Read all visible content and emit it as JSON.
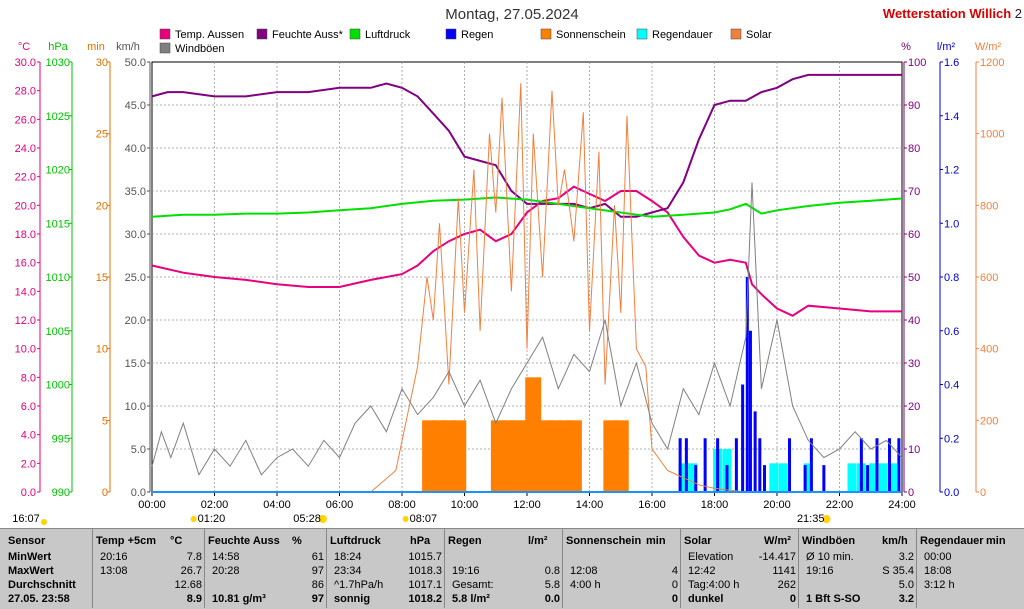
{
  "title": "Montag, 27.05.2024",
  "station": "Wetterstation Willich",
  "station_edge": "2",
  "legend": [
    {
      "label": "Temp. Aussen",
      "color": "#e6007e"
    },
    {
      "label": "Feuchte Auss*",
      "color": "#800080"
    },
    {
      "label": "Luftdruck",
      "color": "#00e000"
    },
    {
      "label": "Regen",
      "color": "#0000ff"
    },
    {
      "label": "Sonnenschein",
      "color": "#ff8000"
    },
    {
      "label": "Regendauer",
      "color": "#00ffff"
    },
    {
      "label": "Solar",
      "color": "#f08040"
    },
    {
      "label": "Windböen",
      "color": "#808080"
    }
  ],
  "axis_units": {
    "temp": "°C",
    "pressure": "hPa",
    "sun": "min",
    "wind": "km/h",
    "humidity": "%",
    "rain": "l/m²",
    "solar": "W/m²"
  },
  "axes": {
    "temp": {
      "min": 0,
      "max": 30,
      "step": 2,
      "ticks": [
        "0.0",
        "2.0",
        "4.0",
        "6.0",
        "8.0",
        "10.0",
        "12.0",
        "14.0",
        "16.0",
        "18.0",
        "20.0",
        "22.0",
        "24.0",
        "26.0",
        "28.0",
        "30.0"
      ]
    },
    "pressure": {
      "ticks": [
        "990",
        "995",
        "1000",
        "1005",
        "1010",
        "1015",
        "1020",
        "1025",
        "1030"
      ]
    },
    "sun": {
      "ticks": [
        "0",
        "5",
        "10",
        "15",
        "20",
        "25",
        "30"
      ]
    },
    "wind": {
      "ticks": [
        "0.0",
        "5.0",
        "10.0",
        "15.0",
        "20.0",
        "25.0",
        "30.0",
        "35.0",
        "40.0",
        "45.0",
        "50.0"
      ]
    },
    "humidity": {
      "ticks": [
        "0",
        "10",
        "20",
        "30",
        "40",
        "50",
        "60",
        "70",
        "80",
        "90",
        "100"
      ]
    },
    "rain": {
      "ticks": [
        "0.0",
        "0.2",
        "0.4",
        "0.6",
        "0.8",
        "1.0",
        "1.2",
        "1.4",
        "1.6"
      ]
    },
    "solar": {
      "ticks": [
        "0",
        "200",
        "400",
        "600",
        "800",
        "1000",
        "1200"
      ]
    },
    "time": {
      "ticks": [
        "00:00",
        "02:00",
        "04:00",
        "06:00",
        "08:00",
        "10:00",
        "12:00",
        "14:00",
        "16:00",
        "18:00",
        "20:00",
        "22:00",
        "24:00"
      ]
    }
  },
  "sun_markers": {
    "sunrise": "05:28",
    "sunset": "21:35",
    "moon": "01:20",
    "twilight": "08:07"
  },
  "chart_data": {
    "type": "line",
    "title": "Montag, 27.05.2024",
    "x_unit": "hours",
    "xlim": [
      0,
      24
    ],
    "grid": true,
    "series": [
      {
        "name": "Temp. Aussen",
        "axis": "temp",
        "color": "#e6007e",
        "x": [
          0,
          1,
          2,
          3,
          4,
          5,
          6,
          7,
          8,
          8.5,
          9,
          9.5,
          10,
          10.5,
          11,
          11.5,
          12,
          12.5,
          13,
          13.5,
          14,
          14.5,
          15,
          15.5,
          16,
          16.5,
          17,
          17.5,
          18,
          18.5,
          19,
          19.2,
          19.5,
          20,
          20.5,
          21,
          22,
          23,
          24
        ],
        "y": [
          15.8,
          15.3,
          15.0,
          14.8,
          14.5,
          14.3,
          14.3,
          14.8,
          15.2,
          15.8,
          16.8,
          17.5,
          18.0,
          18.3,
          17.5,
          18.0,
          19.5,
          20.3,
          20.5,
          21.3,
          20.8,
          20.3,
          21.0,
          21.0,
          20.3,
          19.5,
          17.8,
          16.5,
          16.0,
          16.2,
          16.0,
          14.5,
          13.8,
          12.8,
          12.3,
          13.0,
          12.8,
          12.6,
          12.6
        ]
      },
      {
        "name": "Feuchte Auss*",
        "axis": "humidity",
        "color": "#800080",
        "x": [
          0,
          0.5,
          1,
          2,
          3,
          4,
          5,
          6,
          7,
          7.5,
          8,
          8.5,
          9,
          9.5,
          10,
          10.5,
          11,
          11.5,
          12,
          12.5,
          13,
          13.5,
          14,
          14.5,
          15,
          15.5,
          16,
          16.5,
          17,
          17.5,
          18,
          18.5,
          19,
          19.5,
          20,
          20.5,
          21,
          22,
          23,
          24
        ],
        "y": [
          92,
          93,
          93,
          92,
          92,
          93,
          93,
          94,
          94,
          95,
          94,
          92,
          88,
          84,
          78,
          77,
          76,
          70,
          67,
          67,
          67,
          67,
          66,
          67,
          64,
          64,
          65,
          66,
          72,
          82,
          90,
          91,
          91,
          93,
          94,
          96,
          97,
          97,
          97,
          97
        ]
      },
      {
        "name": "Luftdruck",
        "axis": "pressure",
        "color": "#00e000",
        "x": [
          0,
          1,
          2,
          3,
          4,
          5,
          6,
          7,
          8,
          9,
          10,
          11,
          12,
          13,
          14,
          15,
          16,
          17,
          18,
          18.5,
          19,
          19.5,
          20,
          21,
          22,
          23,
          24
        ],
        "y": [
          1015.6,
          1015.8,
          1015.8,
          1015.9,
          1015.9,
          1016.0,
          1016.2,
          1016.4,
          1016.8,
          1017.1,
          1017.2,
          1017.4,
          1017.2,
          1016.8,
          1016.4,
          1016.0,
          1015.6,
          1015.8,
          1016.0,
          1016.3,
          1016.8,
          1015.9,
          1016.2,
          1016.6,
          1016.9,
          1017.1,
          1017.3
        ]
      },
      {
        "name": "Solar",
        "axis": "solar",
        "color": "#f08040",
        "x": [
          0,
          7,
          7.8,
          8.5,
          8.8,
          9.0,
          9.2,
          9.5,
          9.8,
          10.0,
          10.3,
          10.5,
          10.8,
          11.0,
          11.2,
          11.5,
          11.8,
          12.0,
          12.2,
          12.5,
          12.8,
          13.0,
          13.2,
          13.5,
          13.8,
          14.0,
          14.3,
          14.5,
          14.8,
          15.0,
          15.2,
          15.5,
          15.8,
          16.0,
          16.5,
          17.0,
          17.5,
          18.0,
          18.5,
          19.0,
          19.2,
          19.5,
          20,
          24
        ],
        "y": [
          0,
          0,
          60,
          350,
          600,
          480,
          750,
          300,
          820,
          500,
          900,
          450,
          1000,
          780,
          1100,
          560,
          1141,
          400,
          1000,
          600,
          1120,
          800,
          900,
          700,
          1060,
          450,
          950,
          300,
          800,
          500,
          1050,
          400,
          350,
          120,
          60,
          40,
          20,
          10,
          5,
          0,
          0,
          0,
          0,
          0
        ]
      },
      {
        "name": "Windböen",
        "axis": "wind",
        "color": "#808080",
        "x": [
          0,
          0.3,
          0.6,
          1,
          1.5,
          2,
          2.5,
          3,
          3.5,
          4,
          4.5,
          5,
          5.5,
          6,
          6.5,
          7,
          7.5,
          8,
          8.5,
          9,
          9.5,
          10,
          10.5,
          11,
          11.5,
          12,
          12.5,
          13,
          13.5,
          14,
          14.5,
          15,
          15.5,
          16,
          16.5,
          17,
          17.5,
          18,
          18.5,
          19,
          19.2,
          19.5,
          20,
          20.5,
          21,
          21.5,
          22,
          22.5,
          23,
          23.5,
          24
        ],
        "y": [
          3,
          7,
          4,
          8,
          2,
          5,
          3,
          6,
          2,
          4,
          5,
          3,
          6,
          4,
          8,
          10,
          7,
          12,
          9,
          11,
          14,
          10,
          13,
          8,
          12,
          15,
          18,
          12,
          16,
          14,
          20,
          10,
          15,
          8,
          5,
          12,
          9,
          15,
          10,
          18,
          36,
          12,
          20,
          10,
          6,
          4,
          5,
          7,
          5,
          6,
          4
        ]
      }
    ],
    "bars": [
      {
        "name": "Sonnenschein",
        "axis": "sun",
        "color": "#ff8000",
        "x": [
          8.9,
          9.2,
          9.5,
          9.8,
          11.1,
          11.4,
          11.7,
          12.0,
          12.2,
          12.6,
          12.9,
          13.2,
          13.5,
          14.7,
          15.0
        ],
        "y": [
          5,
          5,
          5,
          5,
          5,
          5,
          5,
          5,
          8,
          5,
          5,
          5,
          5,
          5,
          5
        ]
      },
      {
        "name": "Regendauer",
        "axis": "sun",
        "color": "#00ffff",
        "x": [
          17.0,
          17.3,
          18.1,
          18.4,
          19.9,
          20.2,
          21.0,
          22.4,
          22.7,
          23.1,
          23.4,
          23.7
        ],
        "y": [
          2,
          2,
          3,
          3,
          2,
          2,
          2,
          2,
          2,
          2,
          2,
          2
        ]
      },
      {
        "name": "Regen",
        "axis": "rain",
        "color": "#0000ff",
        "x": [
          16.9,
          17.1,
          17.4,
          17.7,
          18.1,
          18.4,
          18.7,
          18.9,
          19.05,
          19.15,
          19.3,
          19.45,
          19.6,
          20.4,
          20.9,
          21.1,
          21.5,
          22.7,
          22.9,
          23.2,
          23.6,
          23.9
        ],
        "y": [
          0.2,
          0.2,
          0.1,
          0.2,
          0.2,
          0.1,
          0.2,
          0.4,
          0.8,
          0.6,
          0.3,
          0.2,
          0.1,
          0.2,
          0.1,
          0.2,
          0.1,
          0.2,
          0.1,
          0.2,
          0.2,
          0.2
        ]
      }
    ]
  },
  "table": {
    "headers": [
      {
        "k": "Sensor"
      },
      {
        "k": "Temp +5cm",
        "u": "°C"
      },
      {
        "k": "Feuchte Auss",
        "u": "%"
      },
      {
        "k": "Luftdruck",
        "u": "hPa"
      },
      {
        "k": "Regen",
        "u": "l/m²"
      },
      {
        "k": "Sonnenschein",
        "u": "min"
      },
      {
        "k": "Solar",
        "u": "W/m²"
      },
      {
        "k": "Windböen",
        "u": "km/h"
      },
      {
        "k": "Regendauer",
        "u": "min"
      }
    ],
    "rows": [
      [
        "MinWert",
        "20:16",
        "7.8",
        "14:58",
        "61",
        "18:24",
        "1015.7",
        "",
        "",
        "",
        "",
        "Elevation",
        "-14.417",
        "Ø 10 min.",
        "3.2",
        "00:00"
      ],
      [
        "MaxWert",
        "13:08",
        "26.7",
        "20:28",
        "97",
        "23:34",
        "1018.3",
        "19:16",
        "0.8",
        "12:08",
        "4",
        "12:42",
        "1141",
        "19:16",
        "S 35.4",
        "18:08"
      ],
      [
        "Durchschnitt",
        "",
        "12.68",
        "",
        "86",
        "^1.7hPa/h",
        "1017.1",
        "Gesamt:",
        "5.8",
        "4:00 h",
        "0",
        "Tag:4:00 h",
        "262",
        "",
        "5.0",
        "3:12 h"
      ],
      [
        "27.05. 23:58",
        "",
        "8.9",
        "10.81 g/m³",
        "97",
        "sonnig",
        "1018.2",
        "5.8 l/m²",
        "0.0",
        "",
        "0",
        "dunkel",
        "0",
        "1 Bft S-SO",
        "3.2",
        ""
      ]
    ]
  }
}
